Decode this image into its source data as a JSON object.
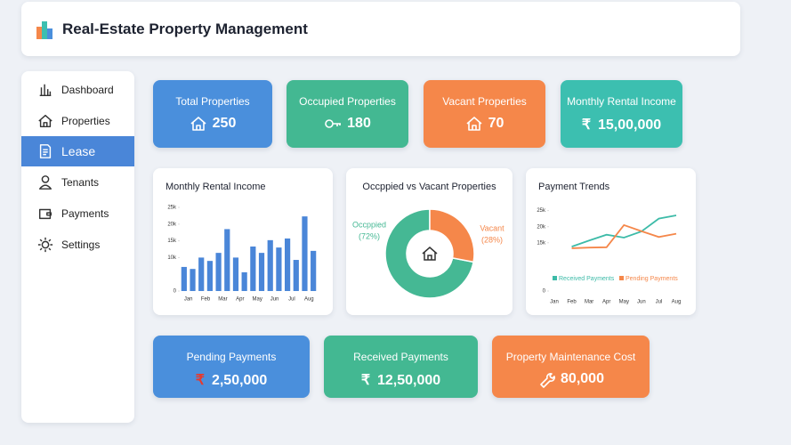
{
  "header": {
    "title": "Real-Estate Property Management"
  },
  "sidebar": {
    "items": [
      "Dashboard",
      "Properties",
      "Lease",
      "Tenants",
      "Payments",
      "Settings"
    ],
    "active": 2
  },
  "cards": [
    {
      "label": "Total Properties",
      "value": "250",
      "color": "#4a8fdc"
    },
    {
      "label": "Occupied Properties",
      "value": "180",
      "color": "#43b892"
    },
    {
      "label": "Vacant Properties",
      "value": "70",
      "color": "#f5874a"
    },
    {
      "label": "Monthly Rental Income",
      "symbol": "₹",
      "value": "15,00,000",
      "color": "#3cbfb0"
    }
  ],
  "bottom_cards": [
    {
      "label": "Pending Payments",
      "symbol": "₹",
      "value": "2,50,000",
      "color": "#4a8fdc"
    },
    {
      "label": "Received Payments",
      "symbol": "₹",
      "value": "12,50,000",
      "color": "#43b892"
    },
    {
      "label": "Property Maintenance Cost",
      "value": "80,000",
      "color": "#f5874a"
    }
  ],
  "chart_data": [
    {
      "type": "bar",
      "title": "Monthly Rental Income",
      "color": "#4a86d8",
      "categories": [
        "Jan",
        null,
        "Feb",
        null,
        "Mar",
        null,
        "Apr",
        null,
        "May",
        null,
        "Jun",
        null,
        "Jul",
        null,
        "Aug",
        null
      ],
      "values": [
        7.2,
        6.6,
        10,
        9,
        11.4,
        18.5,
        10,
        5.6,
        13.3,
        11.4,
        15.2,
        13,
        15.7,
        9.3,
        22.3,
        12
      ],
      "ylim": [
        0,
        25
      ],
      "yticks": [
        0,
        {
          "value": 10,
          "label": "10k"
        },
        {
          "value": 15,
          "label": "15k"
        },
        {
          "value": 20,
          "label": "20k"
        },
        {
          "value": 25,
          "label": "25k"
        }
      ]
    },
    {
      "type": "pie",
      "title": "Occppied vs Vacant Properties",
      "categories": [
        "Occppied",
        "Vacant"
      ],
      "values": [
        72,
        28
      ],
      "value_labels": [
        "(72%)",
        "(28%)"
      ],
      "colors": [
        "#45b894",
        "#f5874a"
      ],
      "donut": true
    },
    {
      "type": "line",
      "title": "Payment Trends",
      "categories": [
        "Jan",
        "Feb",
        "Mar",
        "Apr",
        "May",
        "Jun",
        "Jul",
        "Aug"
      ],
      "series": [
        {
          "name": "Received Payments",
          "color": "#3dbba8",
          "values": [
            null,
            13.8,
            15.7,
            17.5,
            16.6,
            18.5,
            22.5,
            23.5
          ]
        },
        {
          "name": "Pending Payments",
          "color": "#f5874a",
          "values": [
            null,
            13.3,
            13.5,
            13.6,
            20.5,
            18.6,
            16.8,
            17.8
          ]
        }
      ],
      "ylim": [
        0,
        26
      ],
      "yticks": [
        0,
        {
          "value": 15,
          "label": "15k"
        },
        {
          "value": 20,
          "label": "20k"
        },
        {
          "value": 25,
          "label": "25k"
        }
      ],
      "legend": "bottom"
    }
  ]
}
